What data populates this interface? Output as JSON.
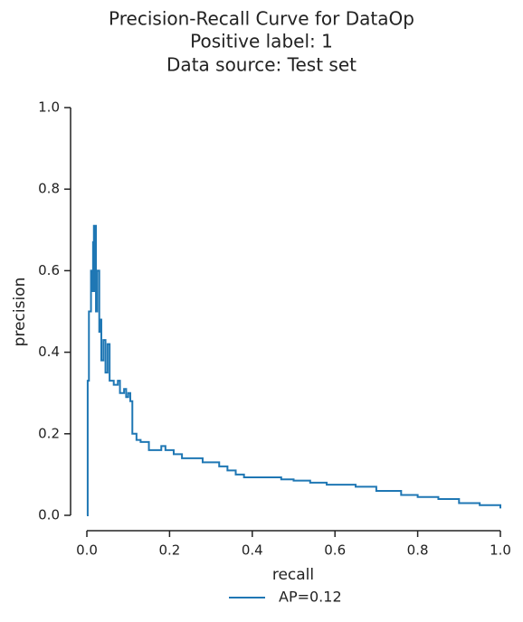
{
  "chart_data": {
    "type": "line",
    "title": [
      "Precision-Recall Curve for DataOp",
      "Positive label: 1",
      "Data source: Test set"
    ],
    "xlabel": "recall",
    "ylabel": "precision",
    "drawstyle": "steps-post",
    "series": [
      {
        "name": "AP=0.12",
        "color": "#1f77b4",
        "x": [
          0,
          0.002,
          0.005,
          0.01,
          0.012,
          0.015,
          0.017,
          0.019,
          0.02,
          0.022,
          0.025,
          0.03,
          0.033,
          0.035,
          0.04,
          0.045,
          0.05,
          0.055,
          0.065,
          0.075,
          0.08,
          0.09,
          0.095,
          0.1,
          0.105,
          0.11,
          0.12,
          0.13,
          0.15,
          0.18,
          0.19,
          0.21,
          0.23,
          0.26,
          0.28,
          0.32,
          0.34,
          0.36,
          0.38,
          0.45,
          0.47,
          0.5,
          0.54,
          0.58,
          0.62,
          0.65,
          0.7,
          0.76,
          0.8,
          0.85,
          0.9,
          0.95,
          1.0
        ],
        "values": [
          0,
          0.33,
          0.5,
          0.6,
          0.55,
          0.67,
          0.71,
          0.55,
          0.71,
          0.5,
          0.6,
          0.45,
          0.48,
          0.38,
          0.43,
          0.35,
          0.42,
          0.33,
          0.32,
          0.33,
          0.3,
          0.31,
          0.29,
          0.3,
          0.28,
          0.2,
          0.185,
          0.18,
          0.16,
          0.17,
          0.16,
          0.15,
          0.14,
          0.14,
          0.13,
          0.12,
          0.11,
          0.1,
          0.093,
          0.093,
          0.088,
          0.085,
          0.08,
          0.075,
          0.075,
          0.07,
          0.06,
          0.05,
          0.045,
          0.04,
          0.03,
          0.025,
          0.017
        ]
      }
    ],
    "xlim": [
      0,
      1
    ],
    "ylim": [
      0,
      1
    ],
    "xticks": [
      {
        "value": 0,
        "label": "0.0"
      },
      0.2,
      0.4,
      0.6,
      0.8,
      {
        "value": 1,
        "label": "1.0"
      }
    ],
    "yticks": [
      {
        "value": 0,
        "label": "0.0"
      },
      0.2,
      0.4,
      0.6,
      0.8,
      {
        "value": 1,
        "label": "1.0"
      }
    ],
    "grid": false,
    "legend": "lower center outside"
  }
}
